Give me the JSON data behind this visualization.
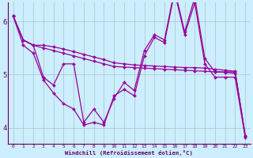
{
  "xlabel": "Windchill (Refroidissement éolien,°C)",
  "bg_color": "#cceeff",
  "grid_color": "#aacccc",
  "line_color": "#990099",
  "axis_color": "#660066",
  "xlim": [
    -0.5,
    23.5
  ],
  "ylim": [
    3.7,
    6.35
  ],
  "yticks": [
    4,
    5,
    6
  ],
  "xticks": [
    0,
    1,
    2,
    3,
    4,
    5,
    6,
    7,
    8,
    9,
    10,
    11,
    12,
    13,
    14,
    15,
    16,
    17,
    18,
    19,
    20,
    21,
    22,
    23
  ],
  "xtick_labels": [
    "0",
    "1",
    "2",
    "3",
    "4",
    "5",
    "6",
    "7",
    "8",
    "9",
    "10",
    "11",
    "12",
    "13",
    "14",
    "15",
    "16",
    "17",
    "18",
    "19",
    "20",
    "21",
    "22",
    "23"
  ],
  "series": [
    [
      6.1,
      5.65,
      5.55,
      4.95,
      4.8,
      5.2,
      5.2,
      4.1,
      4.35,
      4.1,
      4.55,
      4.85,
      4.7,
      5.45,
      5.75,
      5.65,
      6.6,
      5.8,
      6.45,
      5.3,
      5.05,
      5.05,
      5.05,
      3.85
    ],
    [
      6.1,
      5.65,
      5.55,
      5.55,
      5.52,
      5.48,
      5.43,
      5.38,
      5.33,
      5.28,
      5.22,
      5.2,
      5.18,
      5.17,
      5.16,
      5.15,
      5.14,
      5.13,
      5.13,
      5.12,
      5.1,
      5.08,
      5.06,
      3.85
    ],
    [
      6.1,
      5.65,
      5.55,
      5.5,
      5.45,
      5.4,
      5.35,
      5.3,
      5.25,
      5.2,
      5.15,
      5.14,
      5.13,
      5.12,
      5.11,
      5.1,
      5.09,
      5.08,
      5.07,
      5.06,
      5.05,
      5.04,
      5.02,
      3.85
    ],
    [
      6.1,
      5.55,
      5.4,
      4.9,
      4.65,
      4.45,
      4.35,
      4.05,
      4.1,
      4.05,
      4.6,
      4.72,
      4.6,
      5.35,
      5.7,
      5.6,
      6.55,
      5.75,
      6.35,
      5.2,
      4.95,
      4.95,
      4.95,
      3.82
    ]
  ]
}
